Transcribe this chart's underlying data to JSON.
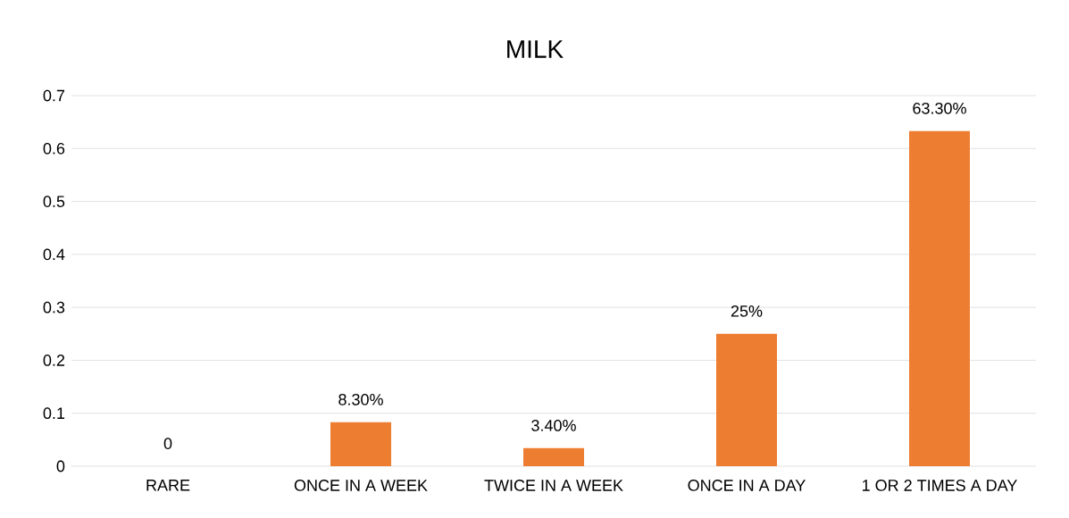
{
  "chart_data": {
    "type": "bar",
    "title": "MILK",
    "categories": [
      "RARE",
      "ONCE IN A WEEK",
      "TWICE IN A WEEK",
      "ONCE IN A DAY",
      "1 OR 2 TIMES A DAY"
    ],
    "values": [
      0,
      0.083,
      0.034,
      0.25,
      0.633
    ],
    "value_labels": [
      "0",
      "8.30%",
      "3.40%",
      "25%",
      "63.30%"
    ],
    "color": "#ed7d31",
    "ylim": [
      0,
      0.7
    ],
    "yticks": [
      0,
      0.1,
      0.2,
      0.3,
      0.4,
      0.5,
      0.6,
      0.7
    ],
    "grid": "y"
  }
}
